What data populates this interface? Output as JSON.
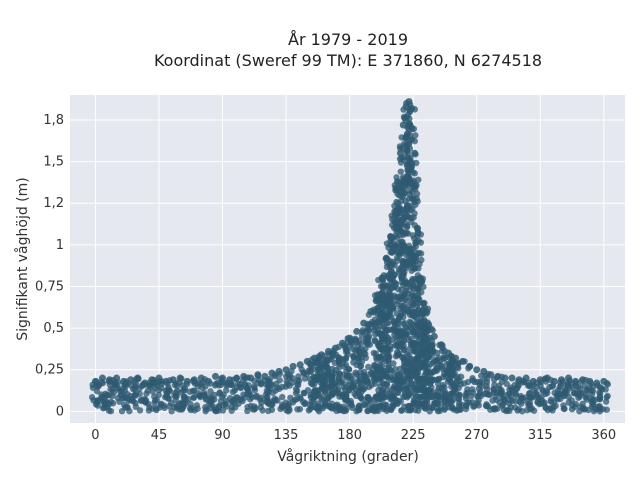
{
  "chart_data": {
    "type": "scatter",
    "title": "År 1979 - 2019",
    "subtitle": "Koordinat (Sweref 99 TM): E 371860, N 6274518",
    "xlabel": "Vågriktning (grader)",
    "ylabel": "Signifikant våghöjd (m)",
    "xlim": [
      -18,
      375
    ],
    "ylim": [
      -0.07,
      1.9
    ],
    "x_ticks": [
      0,
      45,
      90,
      135,
      180,
      225,
      270,
      315,
      360
    ],
    "y_ticks": [
      0,
      0.25,
      0.5,
      0.75,
      1,
      1.25,
      1.5,
      1.75
    ],
    "y_tick_labels": [
      "0",
      "0,25",
      "0,5",
      "0,75",
      "1",
      "1,2",
      "1,5",
      "1,8"
    ],
    "grid": true,
    "series": [
      {
        "color": "#2e5a72",
        "x": [
          0,
          5,
          10,
          15,
          20,
          25,
          30,
          35,
          40,
          45,
          50,
          55,
          60,
          65,
          70,
          75,
          80,
          85,
          90,
          95,
          100,
          105,
          110,
          115,
          120,
          125,
          130,
          135,
          140,
          145,
          150,
          155,
          160,
          165,
          170,
          175,
          180,
          185,
          190,
          195,
          200,
          203,
          206,
          209,
          212,
          214,
          216,
          218,
          220,
          222,
          224,
          226,
          228,
          230,
          233,
          236,
          240,
          245,
          250,
          255,
          260,
          265,
          270,
          275,
          280,
          285,
          290,
          295,
          300,
          305,
          310,
          315,
          320,
          325,
          330,
          335,
          340,
          345,
          350,
          355,
          360
        ],
        "y": [
          0.18,
          0.2,
          0.19,
          0.2,
          0.18,
          0.19,
          0.2,
          0.17,
          0.19,
          0.2,
          0.18,
          0.19,
          0.2,
          0.18,
          0.19,
          0.2,
          0.18,
          0.21,
          0.2,
          0.19,
          0.2,
          0.21,
          0.2,
          0.22,
          0.21,
          0.23,
          0.24,
          0.25,
          0.27,
          0.28,
          0.3,
          0.32,
          0.34,
          0.36,
          0.38,
          0.41,
          0.44,
          0.48,
          0.53,
          0.6,
          0.7,
          0.8,
          0.92,
          1.05,
          1.2,
          1.38,
          1.55,
          1.72,
          1.83,
          1.86,
          1.82,
          1.55,
          1.1,
          0.8,
          0.62,
          0.52,
          0.45,
          0.4,
          0.35,
          0.32,
          0.3,
          0.27,
          0.25,
          0.24,
          0.22,
          0.21,
          0.2,
          0.2,
          0.19,
          0.2,
          0.18,
          0.19,
          0.2,
          0.18,
          0.19,
          0.2,
          0.18,
          0.19,
          0.18,
          0.17,
          0.18
        ]
      }
    ]
  }
}
